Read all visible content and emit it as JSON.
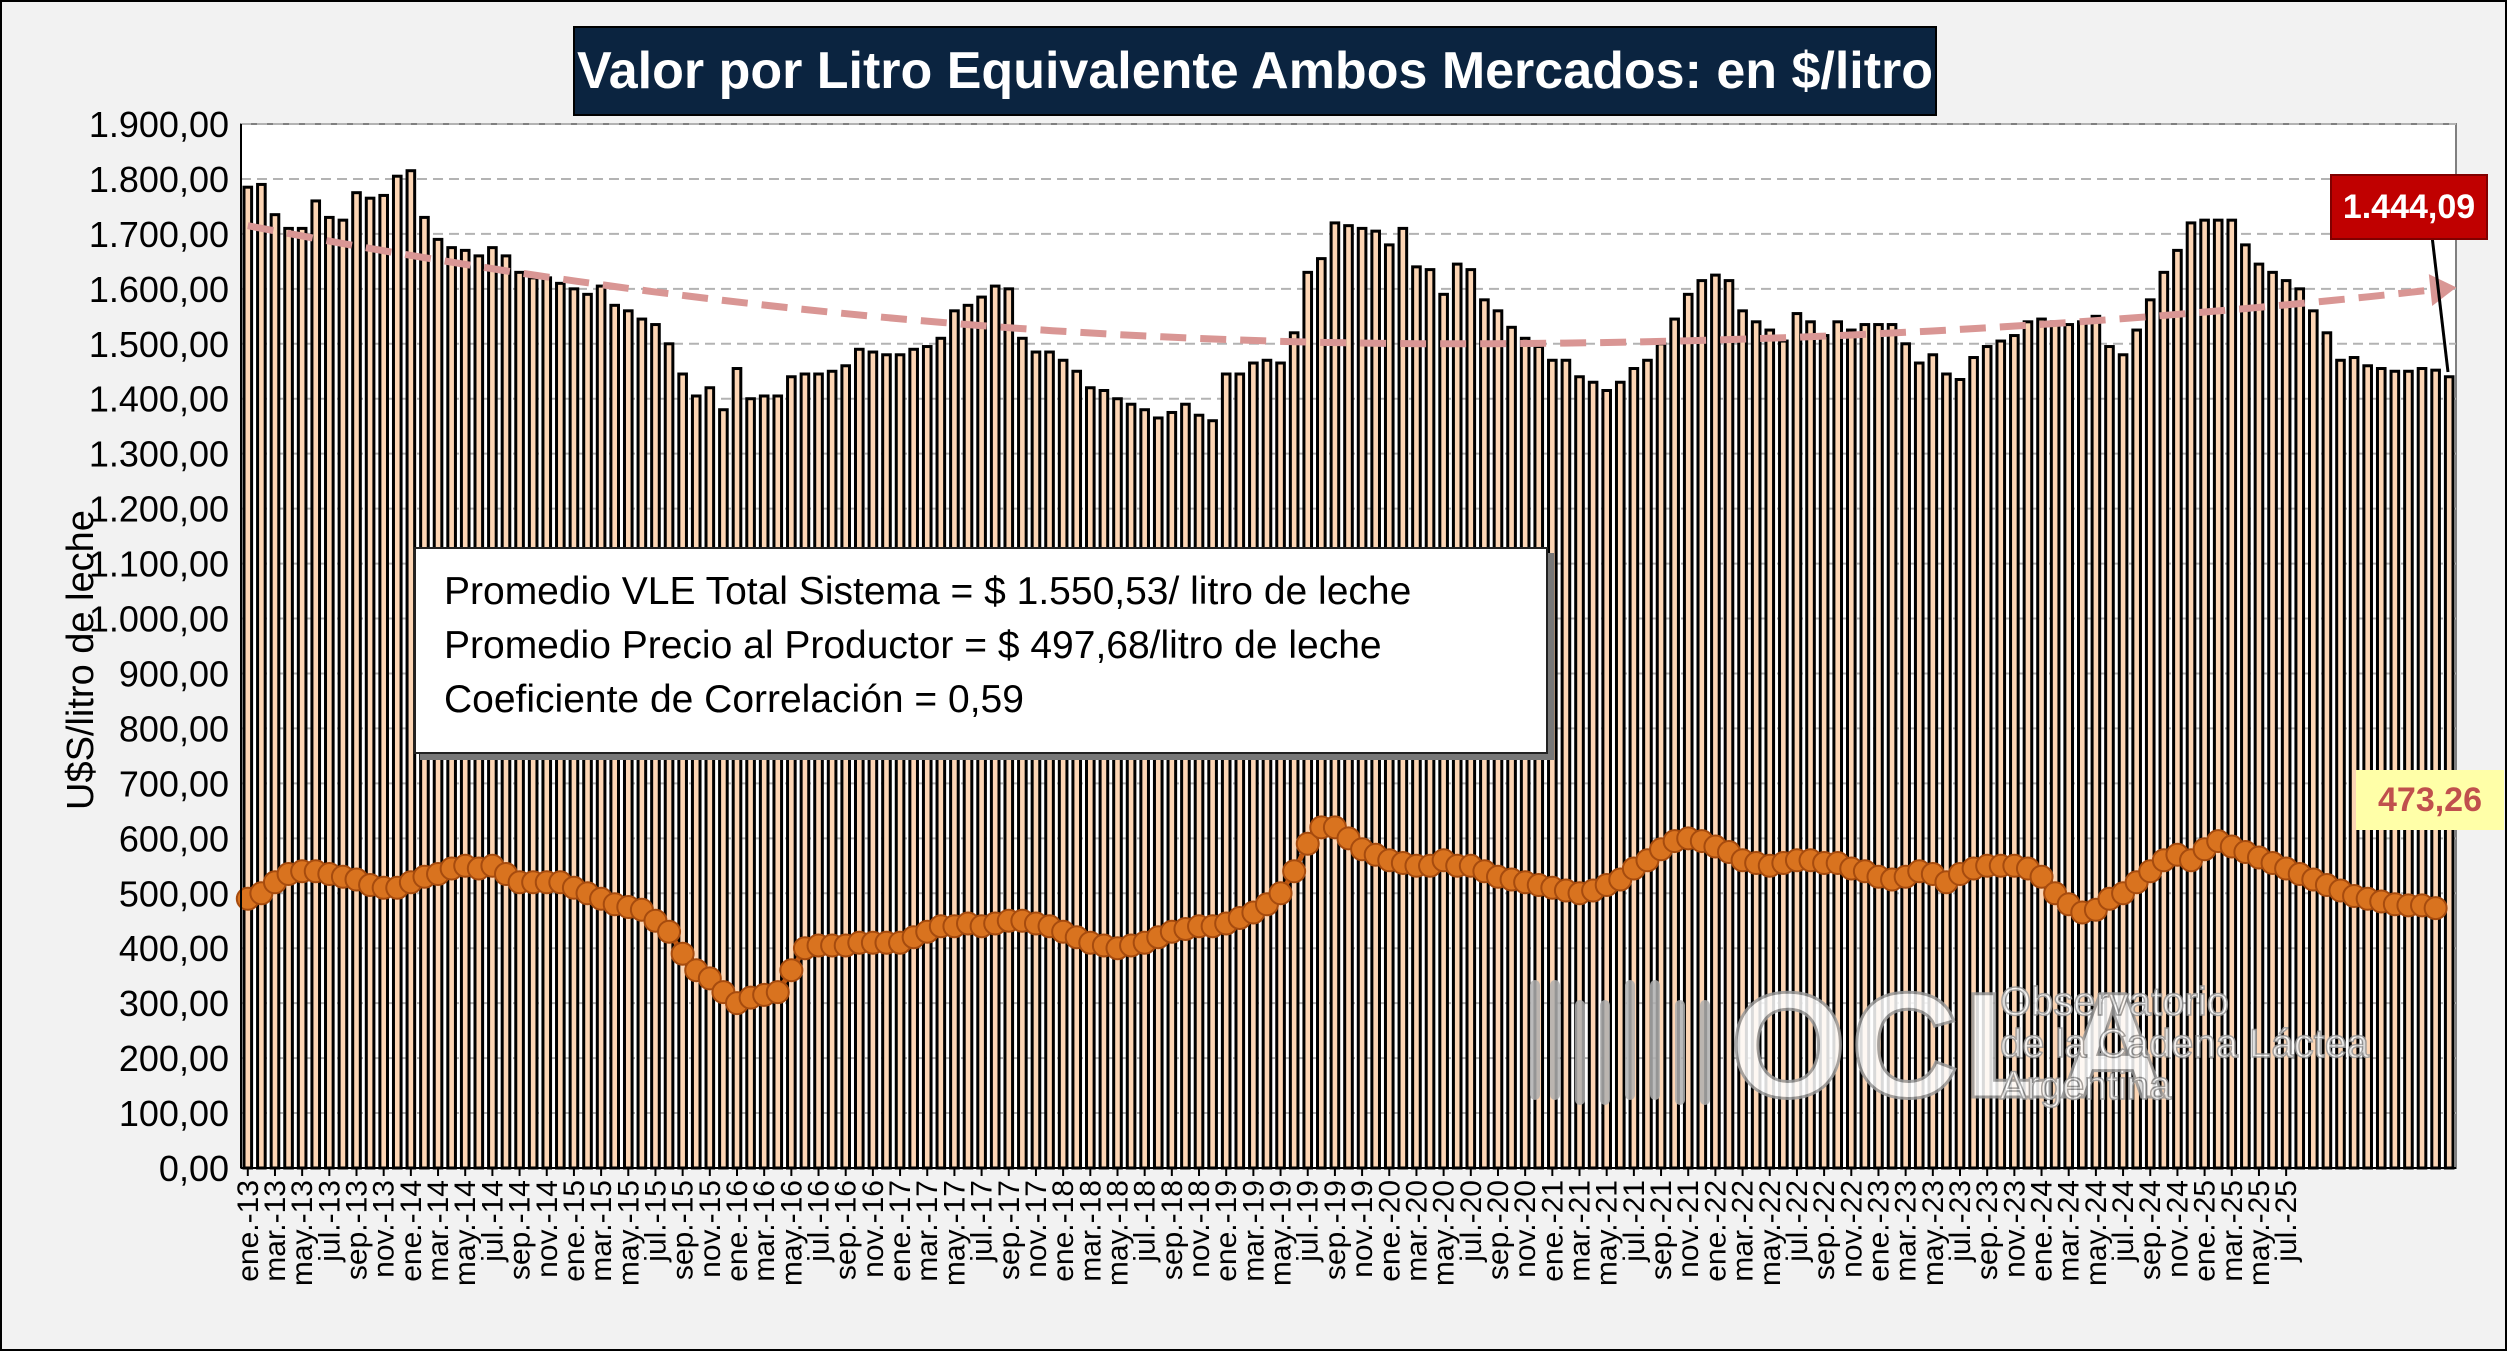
{
  "chart_data": {
    "type": "bar",
    "title": "Valor por Litro Equivalente Ambos Mercados: en $/litro",
    "ylabel": "U$S/litro de leche",
    "xlabel": "",
    "ylim": [
      0,
      1900
    ],
    "yticks": [
      "0,00",
      "100,00",
      "200,00",
      "300,00",
      "400,00",
      "500,00",
      "600,00",
      "700,00",
      "800,00",
      "900,00",
      "1.000,00",
      "1.100,00",
      "1.200,00",
      "1.300,00",
      "1.400,00",
      "1.500,00",
      "1.600,00",
      "1.700,00",
      "1.800,00",
      "1.900,00"
    ],
    "grid": true,
    "x_tick_labels": [
      "ene.-13",
      "mar.-13",
      "may.-13",
      "jul.-13",
      "sep.-13",
      "nov.-13",
      "ene.-14",
      "mar.-14",
      "may.-14",
      "jul.-14",
      "sep.-14",
      "nov.-14",
      "ene.-15",
      "mar.-15",
      "may.-15",
      "jul.-15",
      "sep.-15",
      "nov.-15",
      "ene.-16",
      "mar.-16",
      "may.-16",
      "jul.-16",
      "sep.-16",
      "nov.-16",
      "ene.-17",
      "mar.-17",
      "may.-17",
      "jul.-17",
      "sep.-17",
      "nov.-17",
      "ene.-18",
      "mar.-18",
      "may.-18",
      "jul.-18",
      "sep.-18",
      "nov.-18",
      "ene.-19",
      "mar.-19",
      "may.-19",
      "jul.-19",
      "sep.-19",
      "nov.-19",
      "ene.-20",
      "mar.-20",
      "may.-20",
      "jul.-20",
      "sep.-20",
      "nov.-20",
      "ene.-21",
      "mar.-21",
      "may.-21",
      "jul.-21",
      "sep.-21",
      "nov.-21",
      "ene.-22",
      "mar.-22",
      "may.-22",
      "jul.-22",
      "sep.-22",
      "nov.-22",
      "ene.-23",
      "mar.-23",
      "may.-23",
      "jul.-23",
      "sep.-23",
      "nov.-23",
      "ene.-24",
      "mar.-24",
      "may.-24",
      "jul.-24",
      "sep.-24",
      "nov.-24",
      "ene.-25",
      "mar.-25",
      "may.-25",
      "jul.-25"
    ],
    "series": [
      {
        "kind": "bar",
        "color": "#fcd5b4",
        "values": [
          1785,
          1790,
          1735,
          1710,
          1710,
          1760,
          1730,
          1725,
          1775,
          1765,
          1770,
          1805,
          1815,
          1730,
          1690,
          1675,
          1670,
          1660,
          1675,
          1660,
          1630,
          1620,
          1620,
          1610,
          1600,
          1590,
          1605,
          1570,
          1560,
          1545,
          1535,
          1500,
          1445,
          1405,
          1420,
          1380,
          1455,
          1400,
          1405,
          1405,
          1440,
          1445,
          1445,
          1450,
          1460,
          1490,
          1485,
          1480,
          1480,
          1490,
          1495,
          1510,
          1560,
          1570,
          1585,
          1605,
          1600,
          1510,
          1485,
          1485,
          1470,
          1450,
          1420,
          1415,
          1400,
          1390,
          1380,
          1365,
          1375,
          1390,
          1370,
          1360,
          1445,
          1445,
          1465,
          1470,
          1465,
          1520,
          1630,
          1655,
          1720,
          1715,
          1710,
          1705,
          1680,
          1710,
          1640,
          1635,
          1590,
          1645,
          1635,
          1580,
          1560,
          1530,
          1510,
          1495,
          1470,
          1470,
          1440,
          1430,
          1415,
          1430,
          1455,
          1470,
          1500,
          1545,
          1590,
          1615,
          1625,
          1615,
          1560,
          1540,
          1525,
          1505,
          1555,
          1540,
          1515,
          1540,
          1525,
          1535,
          1535,
          1535,
          1500,
          1465,
          1480,
          1445,
          1435,
          1475,
          1495,
          1505,
          1515,
          1540,
          1545,
          1540,
          1535,
          1540,
          1550,
          1495,
          1480,
          1525,
          1580,
          1630,
          1670,
          1720,
          1725,
          1725,
          1725,
          1680,
          1645,
          1630,
          1615,
          1600,
          1560,
          1520,
          1470,
          1475,
          1460,
          1455,
          1450,
          1450,
          1455,
          1452,
          1440
        ]
      },
      {
        "kind": "line",
        "color": "#c55a11",
        "marker_color": "#d9731f",
        "values": [
          490,
          500,
          520,
          535,
          540,
          540,
          535,
          530,
          525,
          515,
          510,
          510,
          520,
          530,
          535,
          545,
          550,
          545,
          550,
          535,
          520,
          520,
          520,
          520,
          510,
          500,
          490,
          480,
          475,
          470,
          450,
          430,
          390,
          360,
          345,
          320,
          300,
          310,
          315,
          320,
          360,
          400,
          405,
          405,
          405,
          410,
          410,
          410,
          410,
          420,
          430,
          440,
          440,
          445,
          440,
          445,
          450,
          450,
          445,
          440,
          430,
          420,
          410,
          405,
          400,
          405,
          410,
          420,
          430,
          435,
          440,
          440,
          445,
          455,
          465,
          480,
          500,
          540,
          590,
          620,
          620,
          600,
          580,
          570,
          560,
          555,
          550,
          550,
          560,
          550,
          550,
          540,
          530,
          525,
          520,
          515,
          510,
          505,
          500,
          505,
          515,
          525,
          545,
          560,
          580,
          595,
          600,
          595,
          585,
          575,
          560,
          555,
          550,
          555,
          560,
          560,
          555,
          555,
          545,
          540,
          530,
          525,
          530,
          540,
          535,
          520,
          535,
          545,
          550,
          550,
          550,
          545,
          530,
          500,
          480,
          465,
          470,
          490,
          500,
          520,
          540,
          560,
          570,
          560,
          580,
          595,
          585,
          575,
          565,
          555,
          545,
          535,
          525,
          515,
          505,
          495,
          490,
          485,
          480,
          478,
          478,
          473
        ]
      },
      {
        "kind": "trend",
        "color": "#d99694",
        "values": [
          1715,
          1500,
          1560,
          1600
        ]
      }
    ],
    "annotations": {
      "stats": [
        "Promedio VLE Total Sistema = $ 1.550,53/ litro de leche",
        "Promedio Precio al Productor = $ 497,68/litro de leche",
        "Coeficiente de Correlación = 0,59"
      ],
      "last_vle": "1.444,09",
      "last_producer": "473,26"
    }
  },
  "watermark": {
    "logo_text": "OCLA",
    "line1": "Observatorio",
    "line2": "de la Cadena Láctea",
    "line3": "Argentina"
  }
}
